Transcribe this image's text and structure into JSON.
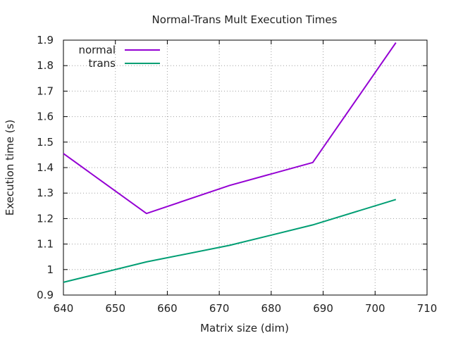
{
  "chart_data": {
    "type": "line",
    "title": "Normal-Trans Mult Execution Times",
    "xlabel": "Matrix size (dim)",
    "ylabel": "Execution time (s)",
    "xlim": [
      640,
      710
    ],
    "ylim": [
      0.9,
      1.9
    ],
    "xticks": [
      640,
      650,
      660,
      670,
      680,
      690,
      700,
      710
    ],
    "yticks": [
      0.9,
      1.0,
      1.1,
      1.2,
      1.3,
      1.4,
      1.5,
      1.6,
      1.7,
      1.8,
      1.9
    ],
    "ytick_labels": [
      "0.9",
      "1",
      "1.1",
      "1.2",
      "1.3",
      "1.4",
      "1.5",
      "1.6",
      "1.7",
      "1.8",
      "1.9"
    ],
    "grid": true,
    "legend_position": "top-left",
    "series": [
      {
        "name": "normal",
        "color": "#9400d3",
        "x": [
          640,
          656,
          672,
          688,
          704
        ],
        "y": [
          1.455,
          1.22,
          1.33,
          1.42,
          1.89
        ]
      },
      {
        "name": "trans",
        "color": "#009e73",
        "x": [
          640,
          656,
          672,
          688,
          704
        ],
        "y": [
          0.95,
          1.03,
          1.095,
          1.175,
          1.275
        ]
      }
    ]
  }
}
